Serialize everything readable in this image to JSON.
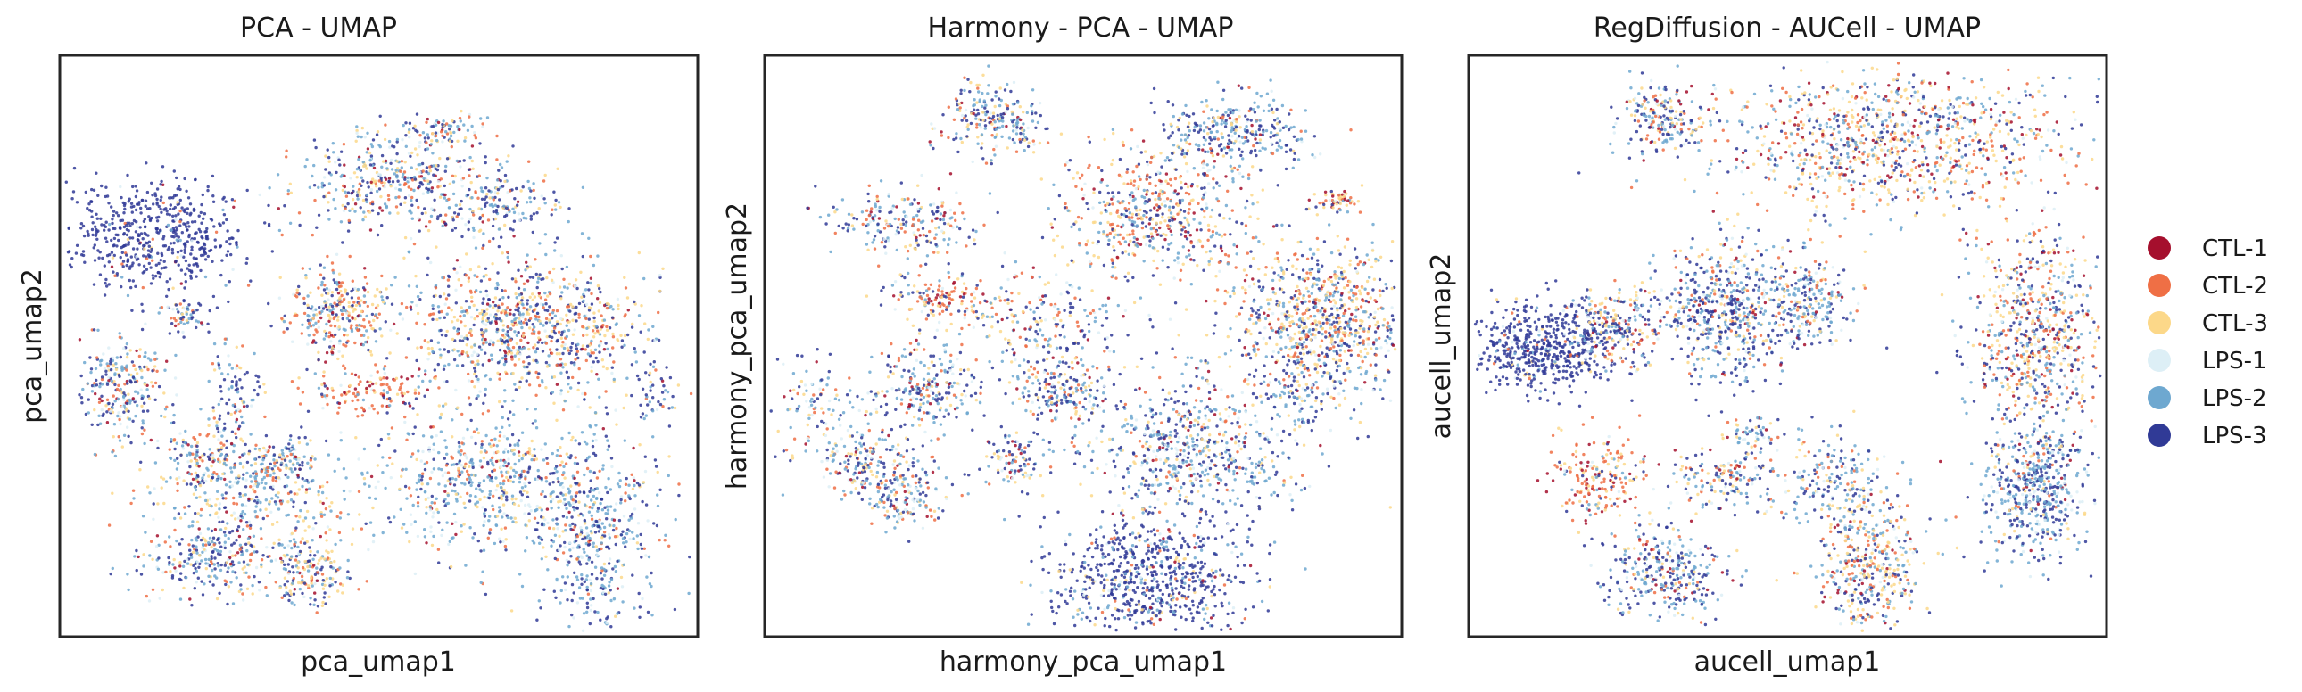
{
  "chart_data": [
    {
      "type": "scatter",
      "title": "PCA - UMAP",
      "xlabel": "pca_umap1",
      "ylabel": "pca_umap2",
      "xticks": [],
      "yticks": [],
      "grid": false,
      "xlim": [
        0,
        100
      ],
      "ylim": [
        0,
        100
      ],
      "clusters": [
        {
          "x": 15,
          "y": 69,
          "sx": 7,
          "sy": 5,
          "n": 560,
          "series": [
            0.01,
            0.02,
            0.02,
            0.02,
            0.03,
            0.9
          ]
        },
        {
          "x": 52,
          "y": 79,
          "sx": 8,
          "sy": 4,
          "n": 420,
          "series": [
            0.05,
            0.14,
            0.14,
            0.08,
            0.32,
            0.27
          ]
        },
        {
          "x": 68,
          "y": 74,
          "sx": 6,
          "sy": 3,
          "n": 180,
          "series": [
            0.06,
            0.1,
            0.12,
            0.06,
            0.2,
            0.46
          ]
        },
        {
          "x": 43,
          "y": 56,
          "sx": 4,
          "sy": 4,
          "n": 300,
          "series": [
            0.08,
            0.26,
            0.26,
            0.06,
            0.2,
            0.14
          ]
        },
        {
          "x": 73,
          "y": 53,
          "sx": 10,
          "sy": 6,
          "n": 900,
          "series": [
            0.06,
            0.16,
            0.24,
            0.06,
            0.22,
            0.26
          ]
        },
        {
          "x": 48,
          "y": 42,
          "sx": 5,
          "sy": 2,
          "n": 130,
          "series": [
            0.16,
            0.52,
            0.18,
            0.04,
            0.06,
            0.04
          ]
        },
        {
          "x": 10,
          "y": 43,
          "sx": 3.5,
          "sy": 4,
          "n": 260,
          "series": [
            0.06,
            0.15,
            0.15,
            0.07,
            0.28,
            0.29
          ]
        },
        {
          "x": 27,
          "y": 41,
          "sx": 2,
          "sy": 4,
          "n": 100,
          "series": [
            0.05,
            0.1,
            0.12,
            0.08,
            0.3,
            0.35
          ]
        },
        {
          "x": 30,
          "y": 25,
          "sx": 8,
          "sy": 5,
          "n": 360,
          "series": [
            0.05,
            0.12,
            0.2,
            0.08,
            0.35,
            0.2
          ]
        },
        {
          "x": 67,
          "y": 27,
          "sx": 10,
          "sy": 6,
          "n": 640,
          "series": [
            0.04,
            0.12,
            0.16,
            0.1,
            0.4,
            0.18
          ]
        },
        {
          "x": 84,
          "y": 17,
          "sx": 5,
          "sy": 8,
          "n": 450,
          "series": [
            0.02,
            0.05,
            0.06,
            0.1,
            0.4,
            0.37
          ]
        },
        {
          "x": 24,
          "y": 13,
          "sx": 6,
          "sy": 3,
          "n": 260,
          "series": [
            0.03,
            0.08,
            0.12,
            0.1,
            0.32,
            0.35
          ]
        },
        {
          "x": 39,
          "y": 11,
          "sx": 3,
          "sy": 3,
          "n": 170,
          "series": [
            0.05,
            0.15,
            0.3,
            0.05,
            0.25,
            0.2
          ]
        },
        {
          "x": 22,
          "y": 30,
          "sx": 4,
          "sy": 3,
          "n": 120,
          "series": [
            0.05,
            0.12,
            0.18,
            0.1,
            0.3,
            0.25
          ]
        },
        {
          "x": 35,
          "y": 30,
          "sx": 2.5,
          "sy": 2,
          "n": 80,
          "series": [
            0.05,
            0.12,
            0.18,
            0.1,
            0.3,
            0.25
          ]
        },
        {
          "x": 20,
          "y": 55,
          "sx": 2,
          "sy": 1.5,
          "n": 60,
          "series": [
            0.05,
            0.12,
            0.18,
            0.1,
            0.3,
            0.25
          ]
        },
        {
          "x": 93,
          "y": 42,
          "sx": 1.5,
          "sy": 3,
          "n": 40,
          "series": [
            0.02,
            0.03,
            0.05,
            0.1,
            0.3,
            0.5
          ]
        },
        {
          "x": 60,
          "y": 87,
          "sx": 3,
          "sy": 1.5,
          "n": 70,
          "series": [
            0.05,
            0.12,
            0.18,
            0.1,
            0.3,
            0.25
          ]
        }
      ]
    },
    {
      "type": "scatter",
      "title": "Harmony - PCA - UMAP",
      "xlabel": "harmony_pca_umap1",
      "ylabel": "harmony_pca_umap2",
      "xticks": [],
      "yticks": [],
      "grid": false,
      "xlim": [
        0,
        100
      ],
      "ylim": [
        0,
        100
      ],
      "clusters": [
        {
          "x": 36,
          "y": 89,
          "sx": 4,
          "sy": 3,
          "n": 220,
          "series": [
            0.05,
            0.12,
            0.15,
            0.08,
            0.3,
            0.3
          ]
        },
        {
          "x": 74,
          "y": 87,
          "sx": 6,
          "sy": 3,
          "n": 300,
          "series": [
            0.03,
            0.06,
            0.08,
            0.08,
            0.35,
            0.4
          ]
        },
        {
          "x": 61,
          "y": 73,
          "sx": 7,
          "sy": 6,
          "n": 560,
          "series": [
            0.1,
            0.22,
            0.2,
            0.06,
            0.22,
            0.2
          ]
        },
        {
          "x": 22,
          "y": 71,
          "sx": 6,
          "sy": 3,
          "n": 220,
          "series": [
            0.08,
            0.15,
            0.15,
            0.08,
            0.28,
            0.26
          ]
        },
        {
          "x": 28,
          "y": 58,
          "sx": 5,
          "sy": 2,
          "n": 140,
          "series": [
            0.15,
            0.4,
            0.2,
            0.05,
            0.1,
            0.1
          ]
        },
        {
          "x": 44,
          "y": 53,
          "sx": 6,
          "sy": 5,
          "n": 220,
          "series": [
            0.06,
            0.12,
            0.14,
            0.08,
            0.28,
            0.32
          ]
        },
        {
          "x": 88,
          "y": 54,
          "sx": 8,
          "sy": 7,
          "n": 900,
          "series": [
            0.06,
            0.16,
            0.28,
            0.05,
            0.2,
            0.25
          ]
        },
        {
          "x": 25,
          "y": 43,
          "sx": 4,
          "sy": 4,
          "n": 240,
          "series": [
            0.05,
            0.12,
            0.14,
            0.08,
            0.31,
            0.3
          ]
        },
        {
          "x": 16,
          "y": 30,
          "sx": 4,
          "sy": 3,
          "n": 180,
          "series": [
            0.05,
            0.12,
            0.14,
            0.08,
            0.31,
            0.3
          ]
        },
        {
          "x": 47,
          "y": 42,
          "sx": 3.5,
          "sy": 3,
          "n": 170,
          "series": [
            0.05,
            0.12,
            0.14,
            0.08,
            0.31,
            0.3
          ]
        },
        {
          "x": 67,
          "y": 32,
          "sx": 8,
          "sy": 6,
          "n": 640,
          "series": [
            0.04,
            0.1,
            0.12,
            0.1,
            0.34,
            0.3
          ]
        },
        {
          "x": 60,
          "y": 10,
          "sx": 8,
          "sy": 5,
          "n": 700,
          "series": [
            0.02,
            0.04,
            0.05,
            0.04,
            0.15,
            0.7
          ]
        },
        {
          "x": 22,
          "y": 24,
          "sx": 3,
          "sy": 3,
          "n": 150,
          "series": [
            0.05,
            0.12,
            0.14,
            0.08,
            0.31,
            0.3
          ]
        },
        {
          "x": 39,
          "y": 31,
          "sx": 2.5,
          "sy": 2.5,
          "n": 90,
          "series": [
            0.05,
            0.12,
            0.14,
            0.08,
            0.31,
            0.3
          ]
        },
        {
          "x": 8,
          "y": 40,
          "sx": 3,
          "sy": 4,
          "n": 100,
          "series": [
            0.05,
            0.12,
            0.14,
            0.08,
            0.31,
            0.3
          ]
        },
        {
          "x": 90,
          "y": 75,
          "sx": 2,
          "sy": 1,
          "n": 60,
          "series": [
            0.08,
            0.2,
            0.3,
            0.05,
            0.2,
            0.17
          ]
        },
        {
          "x": 84,
          "y": 42,
          "sx": 3,
          "sy": 3,
          "n": 80,
          "series": [
            0.02,
            0.04,
            0.05,
            0.1,
            0.4,
            0.39
          ]
        }
      ]
    },
    {
      "type": "scatter",
      "title": "RegDiffusion - AUCell - UMAP",
      "xlabel": "aucell_umap1",
      "ylabel": "aucell_umap2",
      "xticks": [],
      "yticks": [],
      "grid": false,
      "xlim": [
        0,
        100
      ],
      "ylim": [
        0,
        100
      ],
      "clusters": [
        {
          "x": 30,
          "y": 89,
          "sx": 3.5,
          "sy": 3,
          "n": 200,
          "series": [
            0.05,
            0.12,
            0.14,
            0.08,
            0.31,
            0.3
          ]
        },
        {
          "x": 66,
          "y": 85,
          "sx": 14,
          "sy": 6,
          "n": 1000,
          "series": [
            0.1,
            0.18,
            0.26,
            0.08,
            0.2,
            0.18
          ]
        },
        {
          "x": 12,
          "y": 50,
          "sx": 6,
          "sy": 4,
          "n": 600,
          "series": [
            0.01,
            0.02,
            0.03,
            0.02,
            0.04,
            0.88
          ]
        },
        {
          "x": 23,
          "y": 54,
          "sx": 3,
          "sy": 3,
          "n": 160,
          "series": [
            0.06,
            0.16,
            0.24,
            0.06,
            0.22,
            0.26
          ]
        },
        {
          "x": 41,
          "y": 56,
          "sx": 6,
          "sy": 6,
          "n": 620,
          "series": [
            0.04,
            0.08,
            0.1,
            0.08,
            0.3,
            0.4
          ]
        },
        {
          "x": 54,
          "y": 58,
          "sx": 3,
          "sy": 4,
          "n": 180,
          "series": [
            0.04,
            0.1,
            0.12,
            0.1,
            0.34,
            0.3
          ]
        },
        {
          "x": 89,
          "y": 52,
          "sx": 5,
          "sy": 9,
          "n": 700,
          "series": [
            0.06,
            0.16,
            0.24,
            0.06,
            0.22,
            0.26
          ]
        },
        {
          "x": 89,
          "y": 25,
          "sx": 4,
          "sy": 6,
          "n": 500,
          "series": [
            0.02,
            0.05,
            0.06,
            0.1,
            0.4,
            0.37
          ]
        },
        {
          "x": 21,
          "y": 27,
          "sx": 4,
          "sy": 4,
          "n": 200,
          "series": [
            0.14,
            0.4,
            0.24,
            0.04,
            0.1,
            0.08
          ]
        },
        {
          "x": 40,
          "y": 27,
          "sx": 4,
          "sy": 3,
          "n": 150,
          "series": [
            0.05,
            0.12,
            0.14,
            0.08,
            0.31,
            0.3
          ]
        },
        {
          "x": 57,
          "y": 27,
          "sx": 4,
          "sy": 4,
          "n": 170,
          "series": [
            0.04,
            0.1,
            0.12,
            0.1,
            0.34,
            0.3
          ]
        },
        {
          "x": 31,
          "y": 11,
          "sx": 5,
          "sy": 4,
          "n": 320,
          "series": [
            0.03,
            0.06,
            0.08,
            0.1,
            0.33,
            0.4
          ]
        },
        {
          "x": 63,
          "y": 12,
          "sx": 4,
          "sy": 6,
          "n": 420,
          "series": [
            0.06,
            0.16,
            0.28,
            0.06,
            0.22,
            0.22
          ]
        },
        {
          "x": 45,
          "y": 35,
          "sx": 2,
          "sy": 2,
          "n": 60,
          "series": [
            0.05,
            0.12,
            0.14,
            0.08,
            0.31,
            0.3
          ]
        }
      ]
    }
  ],
  "legend": {
    "placement": "right",
    "entries": [
      {
        "label": "CTL-1",
        "color": "#a50f2d"
      },
      {
        "label": "CTL-2",
        "color": "#ef6f45"
      },
      {
        "label": "CTL-3",
        "color": "#fcd889"
      },
      {
        "label": "LPS-1",
        "color": "#ddeff6"
      },
      {
        "label": "LPS-2",
        "color": "#6ea8d0"
      },
      {
        "label": "LPS-3",
        "color": "#303a96"
      }
    ]
  }
}
